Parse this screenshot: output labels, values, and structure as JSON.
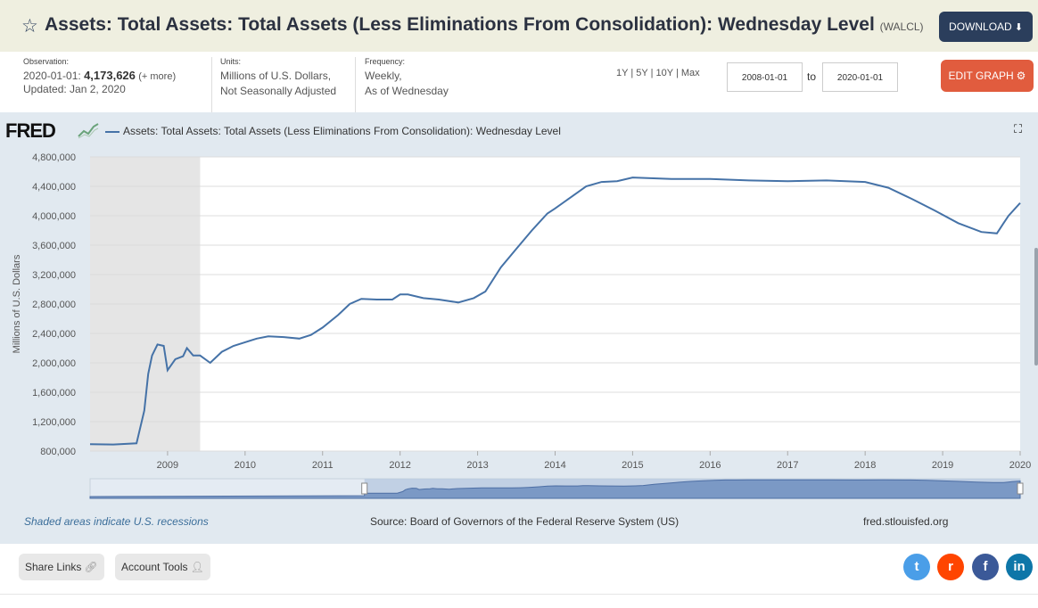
{
  "header": {
    "title": "Assets: Total Assets: Total Assets (Less Eliminations From Consolidation): Wednesday Level",
    "series_id": "(WALCL)",
    "download_label": "DOWNLOAD"
  },
  "meta": {
    "observation_label": "Observation:",
    "observation_date": "2020-01-01:",
    "observation_value": "4,173,626",
    "observation_more": "(+ more)",
    "updated": "Updated: Jan 2, 2020",
    "units_label": "Units:",
    "units_line1": "Millions of U.S. Dollars,",
    "units_line2": "Not Seasonally Adjusted",
    "frequency_label": "Frequency:",
    "frequency_line1": "Weekly,",
    "frequency_line2": "As of Wednesday"
  },
  "controls": {
    "range_1y": "1Y",
    "range_5y": "5Y",
    "range_10y": "10Y",
    "range_max": "Max",
    "sep": "|",
    "start_date": "2008-01-01",
    "to_label": "to",
    "end_date": "2020-01-01",
    "edit_label": "EDIT GRAPH"
  },
  "graph": {
    "logo": "FRED",
    "legend": "Assets: Total Assets: Total Assets (Less Eliminations From Consolidation): Wednesday Level"
  },
  "footer": {
    "recession_note": "Shaded areas indicate U.S. recessions",
    "source": "Source: Board of Governors of the Federal Reserve System (US)",
    "site": "fred.stlouisfed.org"
  },
  "bottom": {
    "share_label": "Share Links",
    "account_label": "Account Tools"
  },
  "colors": {
    "series": "#4572a7",
    "recession": "#e5e5e5",
    "panel": "#e1e9f0",
    "download": "#2b3e5c",
    "edit": "#e15c3e",
    "twitter": "#4a9ee8",
    "reddit": "#ff4500",
    "facebook": "#3b5998",
    "linkedin": "#0e76a8"
  },
  "chart_data": {
    "type": "line",
    "title": "Assets: Total Assets: Total Assets (Less Eliminations From Consolidation): Wednesday Level",
    "ylabel": "Millions of U.S. Dollars",
    "xlabel": "",
    "xlim": [
      2008.0,
      2020.0
    ],
    "ylim": [
      800000,
      4800000
    ],
    "yticks": [
      800000,
      1200000,
      1600000,
      2000000,
      2400000,
      2800000,
      3200000,
      3600000,
      4000000,
      4400000,
      4800000
    ],
    "ytick_labels": [
      "800,000",
      "1,200,000",
      "1,600,000",
      "2,000,000",
      "2,400,000",
      "2,800,000",
      "3,200,000",
      "3,600,000",
      "4,000,000",
      "4,400,000",
      "4,800,000"
    ],
    "xticks": [
      2009,
      2010,
      2011,
      2012,
      2013,
      2014,
      2015,
      2016,
      2017,
      2018,
      2019,
      2020
    ],
    "xtick_labels": [
      "2009",
      "2010",
      "2011",
      "2012",
      "2013",
      "2014",
      "2015",
      "2016",
      "2017",
      "2018",
      "2019",
      "2020"
    ],
    "recessions": [
      [
        2008.0,
        2009.42
      ]
    ],
    "grid": true,
    "series": [
      {
        "name": "WALCL",
        "x": [
          2008.0,
          2008.3,
          2008.6,
          2008.7,
          2008.75,
          2008.8,
          2008.87,
          2008.95,
          2009.0,
          2009.1,
          2009.2,
          2009.25,
          2009.33,
          2009.42,
          2009.55,
          2009.7,
          2009.85,
          2010.0,
          2010.15,
          2010.3,
          2010.5,
          2010.7,
          2010.85,
          2011.0,
          2011.2,
          2011.35,
          2011.5,
          2011.7,
          2011.9,
          2012.0,
          2012.1,
          2012.3,
          2012.5,
          2012.75,
          2012.95,
          2013.1,
          2013.3,
          2013.5,
          2013.7,
          2013.9,
          2014.0,
          2014.2,
          2014.4,
          2014.6,
          2014.8,
          2015.0,
          2015.5,
          2016.0,
          2016.5,
          2017.0,
          2017.5,
          2018.0,
          2018.3,
          2018.6,
          2018.9,
          2019.2,
          2019.5,
          2019.7,
          2019.78,
          2019.85,
          2020.0
        ],
        "y": [
          895000,
          890000,
          905000,
          1350000,
          1850000,
          2100000,
          2250000,
          2230000,
          1900000,
          2050000,
          2090000,
          2200000,
          2100000,
          2100000,
          2000000,
          2150000,
          2230000,
          2280000,
          2330000,
          2360000,
          2350000,
          2330000,
          2380000,
          2480000,
          2650000,
          2800000,
          2870000,
          2860000,
          2860000,
          2930000,
          2930000,
          2880000,
          2860000,
          2820000,
          2880000,
          2970000,
          3300000,
          3550000,
          3800000,
          4030000,
          4100000,
          4250000,
          4400000,
          4460000,
          4470000,
          4520000,
          4500000,
          4500000,
          4480000,
          4470000,
          4480000,
          4460000,
          4380000,
          4230000,
          4070000,
          3900000,
          3780000,
          3760000,
          3890000,
          4000000,
          4173626
        ]
      }
    ]
  }
}
